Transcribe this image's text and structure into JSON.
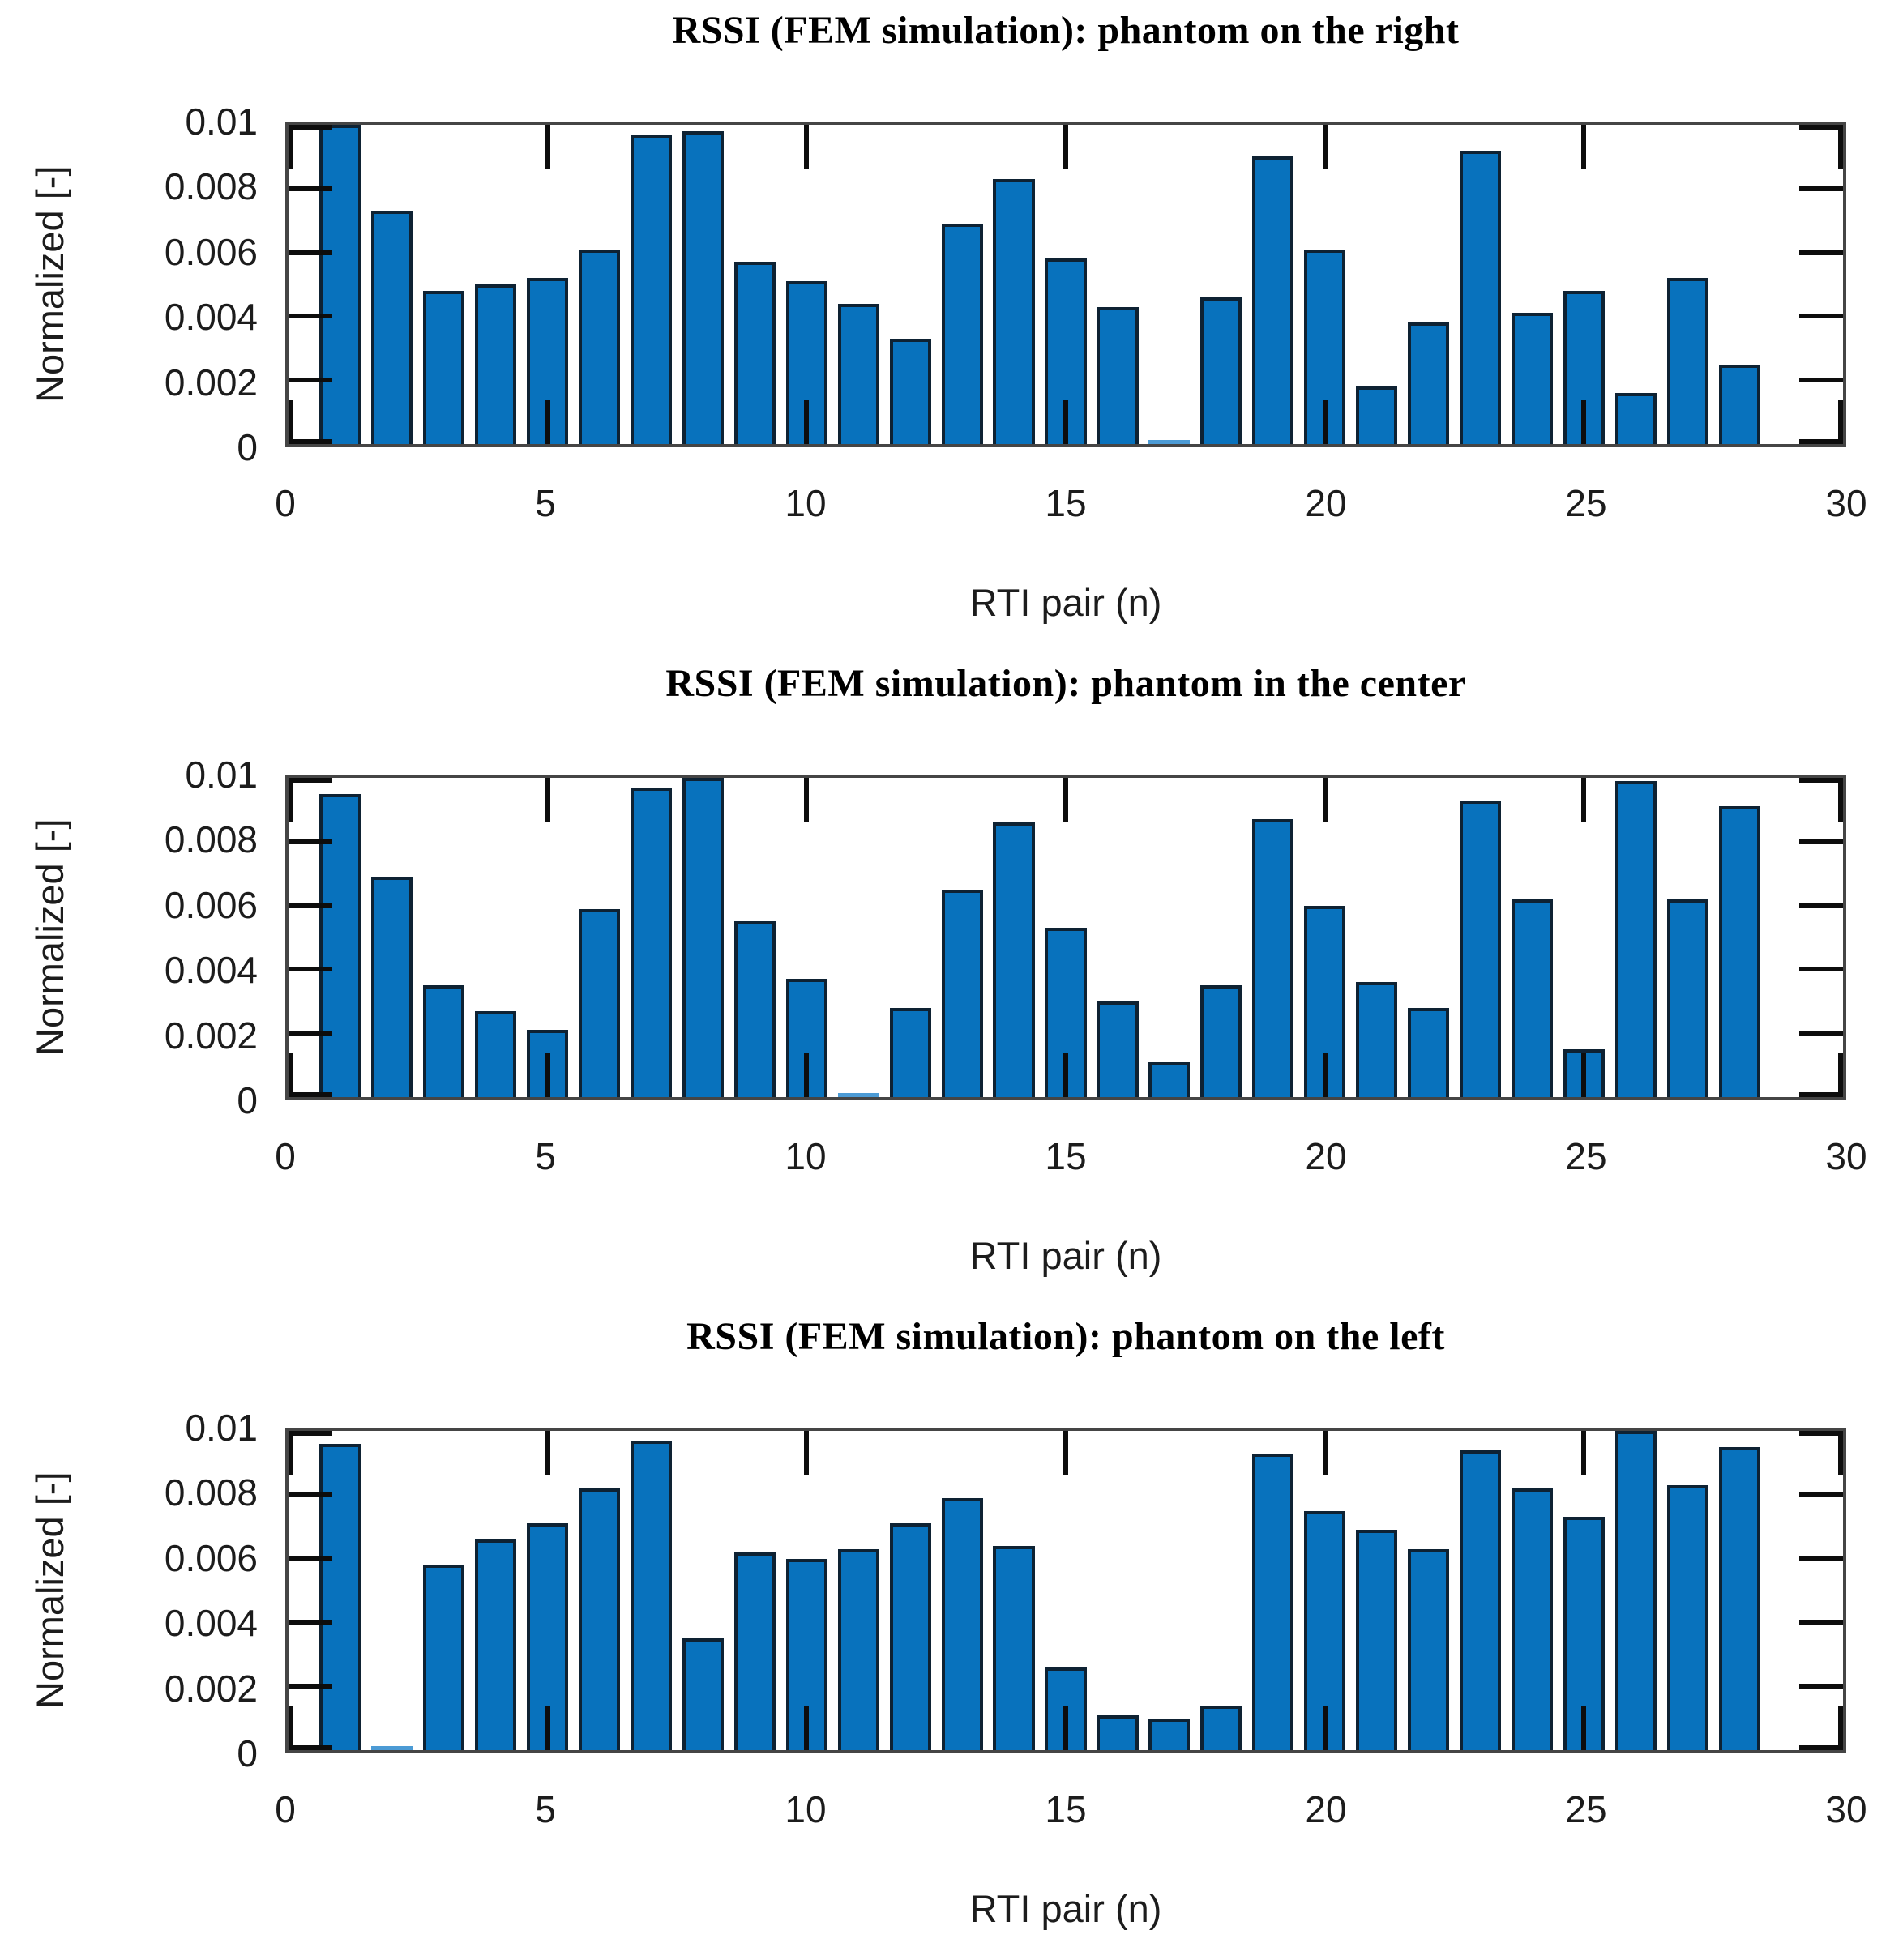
{
  "figure": {
    "background": "#ffffff",
    "bar_fill": "#0872BD",
    "bar_edge": "#0E2233",
    "axis_box_color": "#454545",
    "tick_mark_color": "#0d0d0d",
    "label_text_color": "#1c1c1c",
    "title_text_color": "#000000",
    "bar_width_units": 0.8
  },
  "chart_data": [
    {
      "type": "bar",
      "title": "RSSI (FEM simulation): phantom on the right",
      "xlabel": "RTI pair (n)",
      "ylabel": "Normalized [-]",
      "xlim": [
        0,
        30
      ],
      "ylim": [
        0,
        0.01
      ],
      "grid": false,
      "legend": null,
      "xticks": [
        0,
        5,
        10,
        15,
        20,
        25,
        30
      ],
      "xtick_labels": [
        "0",
        "5",
        "10",
        "15",
        "20",
        "25",
        "30"
      ],
      "yticks": [
        0,
        0.002,
        0.004,
        0.006,
        0.008,
        0.01
      ],
      "ytick_labels": [
        "0",
        "0.002",
        "0.004",
        "0.006",
        "0.008",
        "0.01"
      ],
      "x": [
        1,
        2,
        3,
        4,
        5,
        6,
        7,
        8,
        9,
        10,
        11,
        12,
        13,
        14,
        15,
        16,
        17,
        18,
        19,
        20,
        21,
        22,
        23,
        24,
        25,
        26,
        27,
        28
      ],
      "values": [
        0.01,
        0.0073,
        0.0048,
        0.005,
        0.0052,
        0.0061,
        0.0097,
        0.0098,
        0.0057,
        0.0051,
        0.0044,
        0.0033,
        0.0069,
        0.0083,
        0.0058,
        0.0043,
        8e-05,
        0.0046,
        0.009,
        0.0061,
        0.0018,
        0.0038,
        0.0092,
        0.0041,
        0.0048,
        0.0016,
        0.0052,
        0.0025
      ]
    },
    {
      "type": "bar",
      "title": "RSSI (FEM simulation): phantom in the center",
      "xlabel": "RTI pair (n)",
      "ylabel": "Normalized [-]",
      "xlim": [
        0,
        30
      ],
      "ylim": [
        0,
        0.01
      ],
      "grid": false,
      "legend": null,
      "xticks": [
        0,
        5,
        10,
        15,
        20,
        25,
        30
      ],
      "xtick_labels": [
        "0",
        "5",
        "10",
        "15",
        "20",
        "25",
        "30"
      ],
      "yticks": [
        0,
        0.002,
        0.004,
        0.006,
        0.008,
        0.01
      ],
      "ytick_labels": [
        "0",
        "0.002",
        "0.004",
        "0.006",
        "0.008",
        "0.01"
      ],
      "x": [
        1,
        2,
        3,
        4,
        5,
        6,
        7,
        8,
        9,
        10,
        11,
        12,
        13,
        14,
        15,
        16,
        17,
        18,
        19,
        20,
        21,
        22,
        23,
        24,
        25,
        26,
        27,
        28
      ],
      "values": [
        0.0095,
        0.0069,
        0.0035,
        0.0027,
        0.0021,
        0.0059,
        0.0097,
        0.01,
        0.0055,
        0.0037,
        8e-05,
        0.0028,
        0.0065,
        0.0086,
        0.0053,
        0.003,
        0.0011,
        0.0035,
        0.0087,
        0.006,
        0.0036,
        0.0028,
        0.0093,
        0.0062,
        0.0015,
        0.0099,
        0.0062,
        0.0091
      ]
    },
    {
      "type": "bar",
      "title": "RSSI (FEM simulation): phantom on the left",
      "xlabel": "RTI pair (n)",
      "ylabel": "Normalized [-]",
      "xlim": [
        0,
        30
      ],
      "ylim": [
        0,
        0.01
      ],
      "grid": false,
      "legend": null,
      "xticks": [
        0,
        5,
        10,
        15,
        20,
        25,
        30
      ],
      "xtick_labels": [
        "0",
        "5",
        "10",
        "15",
        "20",
        "25",
        "30"
      ],
      "yticks": [
        0,
        0.002,
        0.004,
        0.006,
        0.008,
        0.01
      ],
      "ytick_labels": [
        "0",
        "0.002",
        "0.004",
        "0.006",
        "0.008",
        "0.01"
      ],
      "x": [
        1,
        2,
        3,
        4,
        5,
        6,
        7,
        8,
        9,
        10,
        11,
        12,
        13,
        14,
        15,
        16,
        17,
        18,
        19,
        20,
        21,
        22,
        23,
        24,
        25,
        26,
        27,
        28
      ],
      "values": [
        0.0096,
        8e-05,
        0.0058,
        0.0066,
        0.0071,
        0.0082,
        0.0097,
        0.0035,
        0.0062,
        0.006,
        0.0063,
        0.0071,
        0.0079,
        0.0064,
        0.0026,
        0.0011,
        0.001,
        0.0014,
        0.0093,
        0.0075,
        0.0069,
        0.0063,
        0.0094,
        0.0082,
        0.0073,
        0.01,
        0.0083,
        0.0095
      ]
    }
  ]
}
